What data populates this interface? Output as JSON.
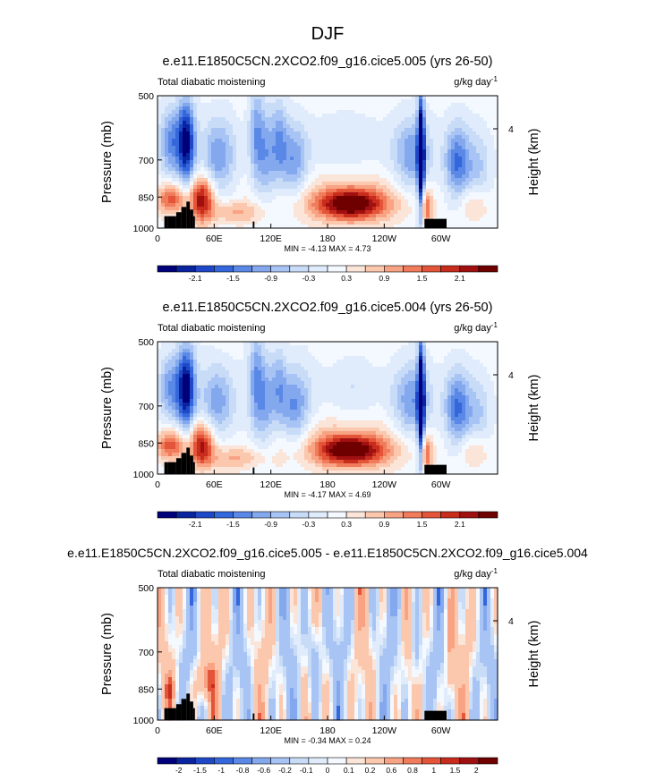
{
  "figure": {
    "title": "DJF"
  },
  "colors": {
    "cb_main": [
      "#00007a",
      "#0a24a0",
      "#1f48c8",
      "#3466dc",
      "#5a88e6",
      "#84a8ee",
      "#a8c4f4",
      "#c8dcf8",
      "#e0ecfc",
      "#f4f8ff",
      "#fbe4d8",
      "#fbc8ae",
      "#f8a484",
      "#f07c5c",
      "#e45438",
      "#c82c1c",
      "#a01010",
      "#6e0000"
    ],
    "cb_diff": [
      "#00007a",
      "#0a24a0",
      "#1f48c8",
      "#3466dc",
      "#5a88e6",
      "#84a8ee",
      "#a8c4f4",
      "#c8dcf8",
      "#e0ecfc",
      "#f4f8ff",
      "#fbe4d8",
      "#fbc8ae",
      "#f8a484",
      "#f07c5c",
      "#e45438",
      "#c82c1c",
      "#a01010",
      "#6e0000"
    ]
  },
  "chart_data": [
    {
      "type": "heatmap",
      "title": "e.e11.E1850C5CN.2XCO2.f09_g16.cice5.005 (yrs 26-50)",
      "subtitle_left": "Total diabatic moistening",
      "units": "g/kg day",
      "units_exp": "-1",
      "ylabel": "Pressure (mb)",
      "ylabel_right": "Height (km)",
      "y_ticks": [
        "500",
        "700",
        "850",
        "1000"
      ],
      "y_right_ticks": [
        "4"
      ],
      "x_ticks": [
        "0",
        "60E",
        "120E",
        "180",
        "120W",
        "60W"
      ],
      "ylim": [
        1000,
        500
      ],
      "minmax": "MIN =  -4.13  MAX =   4.73",
      "colorbar_labels": [
        "-2.1",
        "-1.5",
        "-0.9",
        "-0.3",
        "0.3",
        "0.9",
        "1.5",
        "2.1"
      ]
    },
    {
      "type": "heatmap",
      "title": "e.e11.E1850C5CN.2XCO2.f09_g16.cice5.004 (yrs 26-50)",
      "subtitle_left": "Total diabatic moistening",
      "units": "g/kg day",
      "units_exp": "-1",
      "ylabel": "Pressure (mb)",
      "ylabel_right": "Height (km)",
      "y_ticks": [
        "500",
        "700",
        "850",
        "1000"
      ],
      "y_right_ticks": [
        "4"
      ],
      "x_ticks": [
        "0",
        "60E",
        "120E",
        "180",
        "120W",
        "60W"
      ],
      "ylim": [
        1000,
        500
      ],
      "minmax": "MIN =  -4.17  MAX =   4.69",
      "colorbar_labels": [
        "-2.1",
        "-1.5",
        "-0.9",
        "-0.3",
        "0.3",
        "0.9",
        "1.5",
        "2.1"
      ]
    },
    {
      "type": "heatmap",
      "title": "e.e11.E1850C5CN.2XCO2.f09_g16.cice5.005 - e.e11.E1850C5CN.2XCO2.f09_g16.cice5.004",
      "subtitle_left": "Total diabatic moistening",
      "units": "g/kg day",
      "units_exp": "-1",
      "ylabel": "Pressure (mb)",
      "ylabel_right": "Height (km)",
      "y_ticks": [
        "500",
        "700",
        "850",
        "1000"
      ],
      "y_right_ticks": [
        "4"
      ],
      "x_ticks": [
        "0",
        "60E",
        "120E",
        "180",
        "120W",
        "60W"
      ],
      "ylim": [
        1000,
        500
      ],
      "minmax": "MIN =  -0.34  MAX =   0.24",
      "colorbar_labels": [
        "-2",
        "-1.5",
        "-1",
        "-0.8",
        "-0.6",
        "-0.2",
        "-0.1",
        "0",
        "0.1",
        "0.2",
        "0.6",
        "0.8",
        "1",
        "1.5",
        "2"
      ]
    }
  ]
}
